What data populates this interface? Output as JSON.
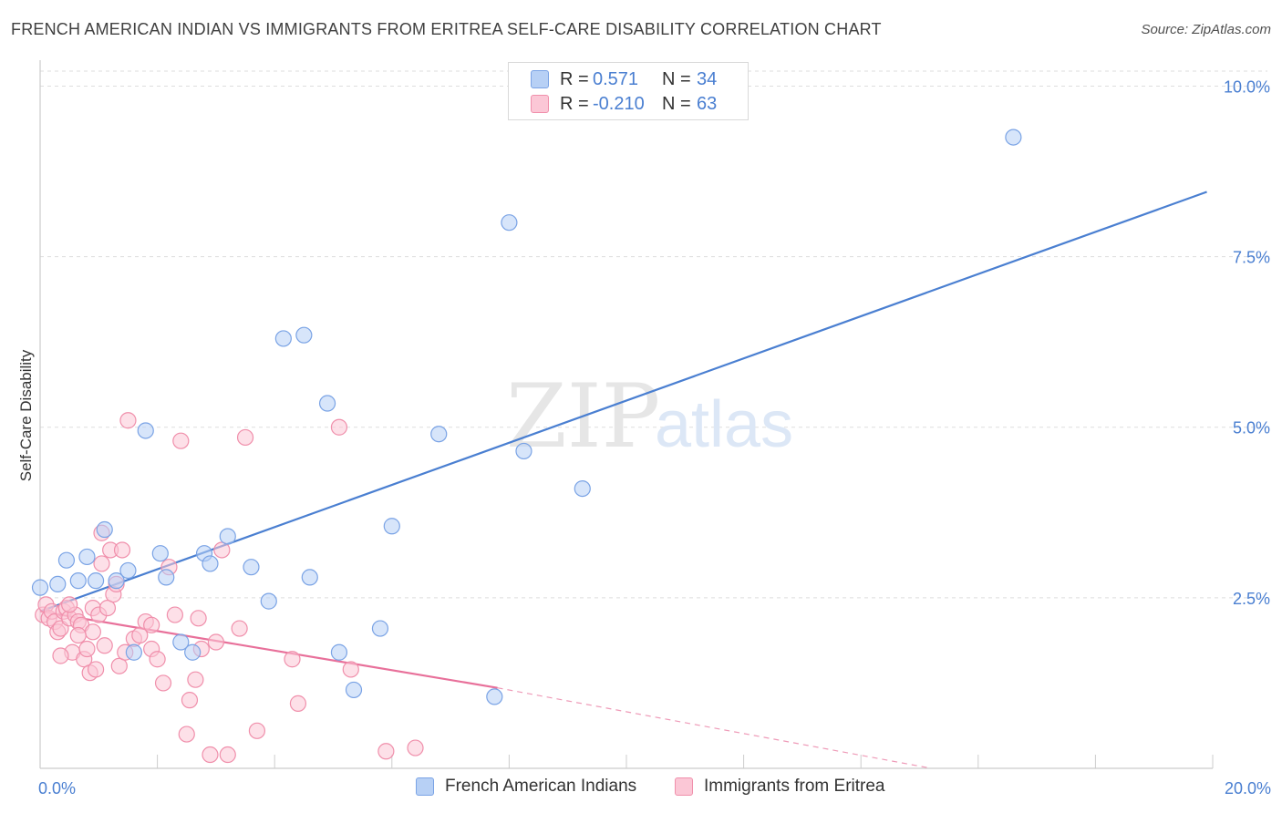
{
  "title": "FRENCH AMERICAN INDIAN VS IMMIGRANTS FROM ERITREA SELF-CARE DISABILITY CORRELATION CHART",
  "source": "Source: ZipAtlas.com",
  "watermark": {
    "zip": "ZIP",
    "atlas": "atlas"
  },
  "legend_top": [
    {
      "r_label": "R =",
      "r_value": "0.571",
      "n_label": "N =",
      "n_value": "34",
      "fill": "#b7d0f5",
      "stroke": "#7aa3e5"
    },
    {
      "r_label": "R =",
      "r_value": "-0.210",
      "n_label": "N =",
      "n_value": "63",
      "fill": "#fbc7d6",
      "stroke": "#f08fab"
    }
  ],
  "legend_bottom": [
    {
      "label": "French American Indians",
      "fill": "#b7d0f5",
      "stroke": "#7aa3e5"
    },
    {
      "label": "Immigrants from Eritrea",
      "fill": "#fbc7d6",
      "stroke": "#f08fab"
    }
  ],
  "chart_data": {
    "type": "scatter",
    "title": "FRENCH AMERICAN INDIAN VS IMMIGRANTS FROM ERITREA SELF-CARE DISABILITY CORRELATION CHART",
    "xlabel": "",
    "ylabel": "Self-Care Disability",
    "xlim": [
      0,
      20
    ],
    "ylim": [
      0,
      10.3
    ],
    "x_tick_labels": [
      {
        "value": 0,
        "label": "0.0%"
      },
      {
        "value": 20,
        "label": "20.0%"
      }
    ],
    "y_tick_labels": [
      {
        "value": 2.5,
        "label": "2.5%"
      },
      {
        "value": 5.0,
        "label": "5.0%"
      },
      {
        "value": 7.5,
        "label": "7.5%"
      },
      {
        "value": 10.0,
        "label": "10.0%"
      }
    ],
    "grid": true,
    "legend_position": "top-center",
    "series": [
      {
        "name": "French American Indians",
        "color": "#4a7fd1",
        "fill": "#b7d0f5",
        "points": [
          [
            0.0,
            2.65
          ],
          [
            0.3,
            2.7
          ],
          [
            0.45,
            3.05
          ],
          [
            0.65,
            2.75
          ],
          [
            0.8,
            3.1
          ],
          [
            0.95,
            2.75
          ],
          [
            1.1,
            3.5
          ],
          [
            1.3,
            2.75
          ],
          [
            1.5,
            2.9
          ],
          [
            1.6,
            1.7
          ],
          [
            1.8,
            4.95
          ],
          [
            2.05,
            3.15
          ],
          [
            2.15,
            2.8
          ],
          [
            2.4,
            1.85
          ],
          [
            2.6,
            1.7
          ],
          [
            2.8,
            3.15
          ],
          [
            2.9,
            3.0
          ],
          [
            3.2,
            3.4
          ],
          [
            3.6,
            2.95
          ],
          [
            3.9,
            2.45
          ],
          [
            4.15,
            6.3
          ],
          [
            4.5,
            6.35
          ],
          [
            4.6,
            2.8
          ],
          [
            4.9,
            5.35
          ],
          [
            5.1,
            1.7
          ],
          [
            5.35,
            1.15
          ],
          [
            5.8,
            2.05
          ],
          [
            6.0,
            3.55
          ],
          [
            6.8,
            4.9
          ],
          [
            7.75,
            1.05
          ],
          [
            8.0,
            8.0
          ],
          [
            8.25,
            4.65
          ],
          [
            9.25,
            4.1
          ],
          [
            16.6,
            9.25
          ]
        ],
        "trend": {
          "x": [
            0.0,
            19.9
          ],
          "y": [
            2.3,
            8.45
          ],
          "dashed_from": null
        }
      },
      {
        "name": "Immigrants from Eritrea",
        "color": "#e8709a",
        "fill": "#fbc7d6",
        "points": [
          [
            0.05,
            2.25
          ],
          [
            0.1,
            2.4
          ],
          [
            0.15,
            2.2
          ],
          [
            0.2,
            2.3
          ],
          [
            0.25,
            2.15
          ],
          [
            0.3,
            2.0
          ],
          [
            0.35,
            2.05
          ],
          [
            0.4,
            2.3
          ],
          [
            0.45,
            2.35
          ],
          [
            0.5,
            2.2
          ],
          [
            0.55,
            1.7
          ],
          [
            0.6,
            2.25
          ],
          [
            0.65,
            2.15
          ],
          [
            0.7,
            2.1
          ],
          [
            0.75,
            1.6
          ],
          [
            0.8,
            1.75
          ],
          [
            0.85,
            1.4
          ],
          [
            0.9,
            2.35
          ],
          [
            0.95,
            1.45
          ],
          [
            1.0,
            2.25
          ],
          [
            1.05,
            3.0
          ],
          [
            1.1,
            1.8
          ],
          [
            1.15,
            2.35
          ],
          [
            1.2,
            3.2
          ],
          [
            1.25,
            2.55
          ],
          [
            1.3,
            2.7
          ],
          [
            1.35,
            1.5
          ],
          [
            1.4,
            3.2
          ],
          [
            1.5,
            5.1
          ],
          [
            1.6,
            1.9
          ],
          [
            1.7,
            1.95
          ],
          [
            1.8,
            2.15
          ],
          [
            1.9,
            1.75
          ],
          [
            2.0,
            1.6
          ],
          [
            2.1,
            1.25
          ],
          [
            2.2,
            2.95
          ],
          [
            2.3,
            2.25
          ],
          [
            2.4,
            4.8
          ],
          [
            2.5,
            0.5
          ],
          [
            2.55,
            1.0
          ],
          [
            2.65,
            1.3
          ],
          [
            2.75,
            1.75
          ],
          [
            2.9,
            0.2
          ],
          [
            3.0,
            1.85
          ],
          [
            3.1,
            3.2
          ],
          [
            3.2,
            0.2
          ],
          [
            3.4,
            2.05
          ],
          [
            3.5,
            4.85
          ],
          [
            3.7,
            0.55
          ],
          [
            4.3,
            1.6
          ],
          [
            4.4,
            0.95
          ],
          [
            5.1,
            5.0
          ],
          [
            5.3,
            1.45
          ],
          [
            5.9,
            0.25
          ],
          [
            6.4,
            0.3
          ],
          [
            1.05,
            3.45
          ],
          [
            0.9,
            2.0
          ],
          [
            0.65,
            1.95
          ],
          [
            0.5,
            2.4
          ],
          [
            1.45,
            1.7
          ],
          [
            1.9,
            2.1
          ],
          [
            0.35,
            1.65
          ],
          [
            2.7,
            2.2
          ]
        ],
        "trend": {
          "x": [
            0.0,
            7.8,
            15.2
          ],
          "y": [
            2.3,
            1.18,
            0.0
          ],
          "dashed_from": 7.8
        }
      }
    ]
  }
}
